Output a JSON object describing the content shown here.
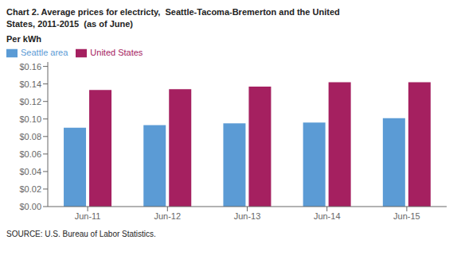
{
  "chart_data": {
    "type": "bar",
    "title": [
      "Chart 2. Average prices for electricty,  Seattle-Tacoma-Bremerton and the United",
      "States, 2011-2015  (as of June)"
    ],
    "ylabel": "Per kWh",
    "annotations": [
      "SOURCE: U.S. Bureau of Labor Statistics."
    ],
    "categories": [
      "Jun-11",
      "Jun-12",
      "Jun-13",
      "Jun-14",
      "Jun-15"
    ],
    "series": [
      {
        "name": "Seattle area",
        "color": "#5B9BD5",
        "values": [
          0.09,
          0.093,
          0.095,
          0.096,
          0.101
        ]
      },
      {
        "name": "United States",
        "color": "#A52060",
        "values": [
          0.133,
          0.134,
          0.137,
          0.142,
          0.142
        ]
      }
    ],
    "ylim": [
      0,
      0.165
    ],
    "yticks": [
      {
        "value": 0.0,
        "label": "$0.00"
      },
      {
        "value": 0.02,
        "label": "$0.02"
      },
      {
        "value": 0.04,
        "label": "$0.04"
      },
      {
        "value": 0.06,
        "label": "$0.06"
      },
      {
        "value": 0.08,
        "label": "$0.08"
      },
      {
        "value": 0.1,
        "label": "$0.10"
      },
      {
        "value": 0.12,
        "label": "$0.12"
      },
      {
        "value": 0.14,
        "label": "$0.14"
      },
      {
        "value": 0.16,
        "label": "$0.16"
      }
    ],
    "legend": "upper left",
    "grid": false
  }
}
